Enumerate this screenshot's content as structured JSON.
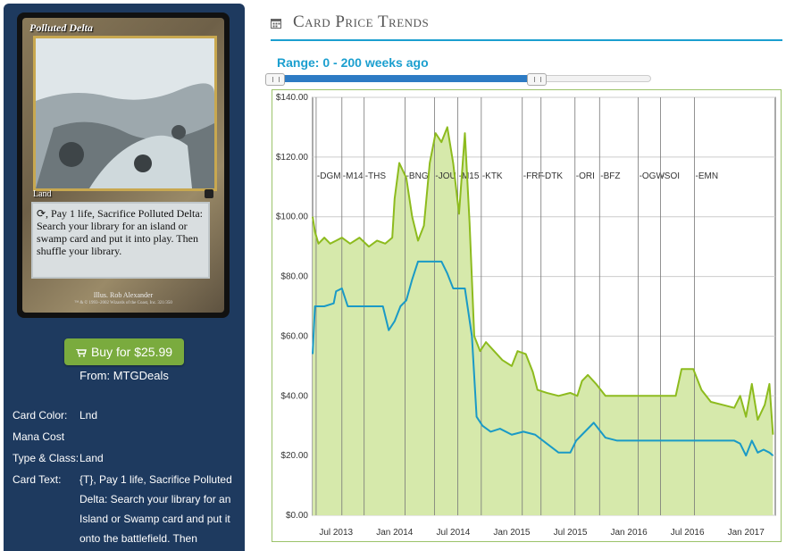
{
  "card": {
    "name": "Polluted Delta",
    "type_line": "Land",
    "rules_text": "⟳, Pay 1 life, Sacrifice Polluted Delta: Search your library for an island or swamp card and put it into play. Then shuffle your library.",
    "illustrator": "Illus. Rob Alexander",
    "copyright": "™ & © 1993–2002 Wizards of the Coast, Inc. 321/350"
  },
  "buy": {
    "label": "Buy for $25.99",
    "from": "From: MTGDeals"
  },
  "details": [
    {
      "label": "Card Color:",
      "value": "Lnd"
    },
    {
      "label": "Mana Cost",
      "value": ""
    },
    {
      "label": "Type & Class:",
      "value": "Land"
    },
    {
      "label": "Card Text:",
      "value": "{T}, Pay 1 life, Sacrifice Polluted Delta: Search your library for an Island or Swamp card and put it onto the battlefield. Then"
    }
  ],
  "section_title": "Card Price Trends",
  "range": {
    "label": "Range: 0 - 200 weeks ago",
    "from_weeks": 0,
    "to_weeks": 200,
    "max_weeks": 280
  },
  "colors": {
    "accent": "#1b9fcf",
    "panel": "#1e3a5f",
    "buy": "#7aab3e",
    "green_line": "#8dbb1e",
    "green_fill": "#d6e9ab",
    "blue_line": "#1a9ac6"
  },
  "chart_data": {
    "type": "area",
    "ylim": [
      0,
      140
    ],
    "yticks": [
      0,
      20,
      40,
      60,
      80,
      100,
      120,
      140
    ],
    "ytick_labels": [
      "$0.00",
      "$20.00",
      "$40.00",
      "$60.00",
      "$80.00",
      "$100.00",
      "$120.00",
      "$140.00"
    ],
    "xlim": [
      2013.3,
      2017.25
    ],
    "xticks": [
      2013.5,
      2014.0,
      2014.5,
      2015.0,
      2015.5,
      2016.0,
      2016.5,
      2017.0
    ],
    "xtick_labels": [
      "Jul 2013",
      "Jan 2014",
      "Jul 2014",
      "Jan 2015",
      "Jul 2015",
      "Jan 2016",
      "Jul 2016",
      "Jan 2017"
    ],
    "set_releases": [
      {
        "label": "DGM",
        "x": 2013.33
      },
      {
        "label": "M14",
        "x": 2013.55
      },
      {
        "label": "THS",
        "x": 2013.74
      },
      {
        "label": "BNG",
        "x": 2014.09
      },
      {
        "label": "JOU",
        "x": 2014.34
      },
      {
        "label": "M15",
        "x": 2014.54
      },
      {
        "label": "KTK",
        "x": 2014.74
      },
      {
        "label": "FRF",
        "x": 2015.09
      },
      {
        "label": "DTK",
        "x": 2015.25
      },
      {
        "label": "ORI",
        "x": 2015.54
      },
      {
        "label": "BFZ",
        "x": 2015.75
      },
      {
        "label": "OGW",
        "x": 2016.08
      },
      {
        "label": "SOI",
        "x": 2016.27
      },
      {
        "label": "EMN",
        "x": 2016.56
      }
    ],
    "series": [
      {
        "points": [
          [
            2013.3,
            100
          ],
          [
            2013.32,
            95
          ],
          [
            2013.35,
            91
          ],
          [
            2013.4,
            93
          ],
          [
            2013.45,
            91
          ],
          [
            2013.5,
            92
          ],
          [
            2013.55,
            93
          ],
          [
            2013.62,
            91
          ],
          [
            2013.7,
            93
          ],
          [
            2013.78,
            90
          ],
          [
            2013.85,
            92
          ],
          [
            2013.92,
            91
          ],
          [
            2013.98,
            93
          ],
          [
            2014.0,
            106
          ],
          [
            2014.04,
            118
          ],
          [
            2014.1,
            113
          ],
          [
            2014.15,
            100
          ],
          [
            2014.2,
            92
          ],
          [
            2014.25,
            97
          ],
          [
            2014.3,
            118
          ],
          [
            2014.35,
            128
          ],
          [
            2014.4,
            125
          ],
          [
            2014.45,
            130
          ],
          [
            2014.5,
            118
          ],
          [
            2014.55,
            101
          ],
          [
            2014.6,
            128
          ],
          [
            2014.64,
            98
          ],
          [
            2014.68,
            60
          ],
          [
            2014.73,
            55
          ],
          [
            2014.78,
            58
          ],
          [
            2014.85,
            55
          ],
          [
            2014.92,
            52
          ],
          [
            2015.0,
            50
          ],
          [
            2015.05,
            55
          ],
          [
            2015.12,
            54
          ],
          [
            2015.18,
            48
          ],
          [
            2015.22,
            42
          ],
          [
            2015.3,
            41
          ],
          [
            2015.4,
            40
          ],
          [
            2015.5,
            41
          ],
          [
            2015.56,
            40
          ],
          [
            2015.6,
            45
          ],
          [
            2015.65,
            47
          ],
          [
            2015.72,
            44
          ],
          [
            2015.8,
            40
          ],
          [
            2015.9,
            40
          ],
          [
            2016.0,
            40
          ],
          [
            2016.1,
            40
          ],
          [
            2016.2,
            40
          ],
          [
            2016.3,
            40
          ],
          [
            2016.4,
            40
          ],
          [
            2016.45,
            49
          ],
          [
            2016.55,
            49
          ],
          [
            2016.62,
            42
          ],
          [
            2016.7,
            38
          ],
          [
            2016.8,
            37
          ],
          [
            2016.9,
            36
          ],
          [
            2016.95,
            40
          ],
          [
            2017.0,
            33
          ],
          [
            2017.05,
            44
          ],
          [
            2017.1,
            32
          ],
          [
            2017.16,
            37
          ],
          [
            2017.2,
            44
          ],
          [
            2017.23,
            27
          ]
        ]
      },
      {
        "points": [
          [
            2013.3,
            54
          ],
          [
            2013.32,
            70
          ],
          [
            2013.4,
            70
          ],
          [
            2013.48,
            71
          ],
          [
            2013.5,
            75
          ],
          [
            2013.55,
            76
          ],
          [
            2013.6,
            70
          ],
          [
            2013.7,
            70
          ],
          [
            2013.8,
            70
          ],
          [
            2013.9,
            70
          ],
          [
            2013.95,
            62
          ],
          [
            2014.0,
            65
          ],
          [
            2014.05,
            70
          ],
          [
            2014.1,
            72
          ],
          [
            2014.15,
            79
          ],
          [
            2014.2,
            85
          ],
          [
            2014.3,
            85
          ],
          [
            2014.4,
            85
          ],
          [
            2014.45,
            81
          ],
          [
            2014.5,
            76
          ],
          [
            2014.6,
            76
          ],
          [
            2014.66,
            60
          ],
          [
            2014.7,
            33
          ],
          [
            2014.75,
            30
          ],
          [
            2014.82,
            28
          ],
          [
            2014.9,
            29
          ],
          [
            2015.0,
            27
          ],
          [
            2015.1,
            28
          ],
          [
            2015.2,
            27
          ],
          [
            2015.3,
            24
          ],
          [
            2015.4,
            21
          ],
          [
            2015.5,
            21
          ],
          [
            2015.55,
            25
          ],
          [
            2015.6,
            27
          ],
          [
            2015.7,
            31
          ],
          [
            2015.8,
            26
          ],
          [
            2015.9,
            25
          ],
          [
            2016.0,
            25
          ],
          [
            2016.1,
            25
          ],
          [
            2016.2,
            25
          ],
          [
            2016.3,
            25
          ],
          [
            2016.4,
            25
          ],
          [
            2016.5,
            25
          ],
          [
            2016.6,
            25
          ],
          [
            2016.7,
            25
          ],
          [
            2016.8,
            25
          ],
          [
            2016.9,
            25
          ],
          [
            2016.95,
            24
          ],
          [
            2017.0,
            20
          ],
          [
            2017.05,
            25
          ],
          [
            2017.1,
            21
          ],
          [
            2017.15,
            22
          ],
          [
            2017.2,
            21
          ],
          [
            2017.23,
            20
          ]
        ]
      }
    ]
  }
}
